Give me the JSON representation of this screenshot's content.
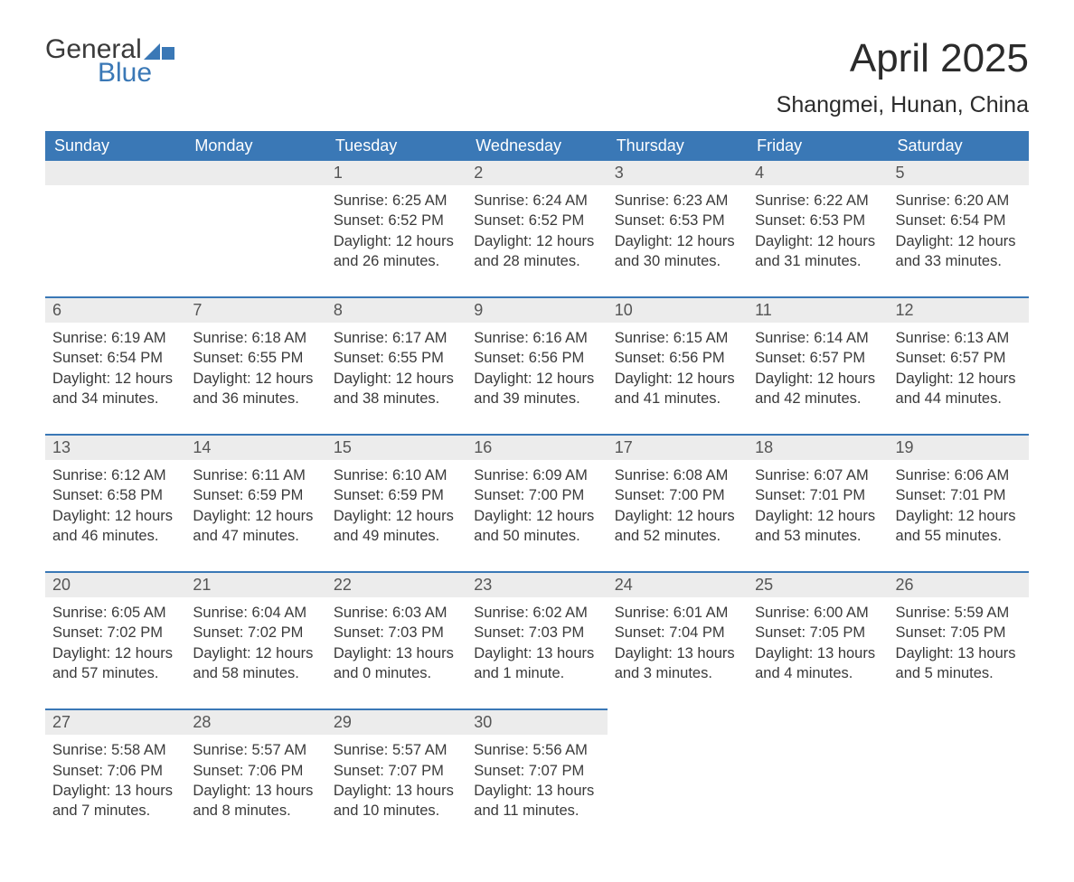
{
  "logo": {
    "word1": "General",
    "word2": "Blue"
  },
  "title": "April 2025",
  "location": "Shangmei, Hunan, China",
  "colors": {
    "header_bg": "#3a78b6",
    "header_text": "#ffffff",
    "daynum_bg": "#ececec",
    "body_text": "#3a3a3a",
    "rule": "#3a78b6",
    "page_bg": "#ffffff"
  },
  "dayHeaders": [
    "Sunday",
    "Monday",
    "Tuesday",
    "Wednesday",
    "Thursday",
    "Friday",
    "Saturday"
  ],
  "labels": {
    "sunrise": "Sunrise: ",
    "sunset": "Sunset: ",
    "daylight": "Daylight: "
  },
  "weeks": [
    [
      null,
      null,
      {
        "n": "1",
        "sunrise": "6:25 AM",
        "sunset": "6:52 PM",
        "daylight": "12 hours and 26 minutes."
      },
      {
        "n": "2",
        "sunrise": "6:24 AM",
        "sunset": "6:52 PM",
        "daylight": "12 hours and 28 minutes."
      },
      {
        "n": "3",
        "sunrise": "6:23 AM",
        "sunset": "6:53 PM",
        "daylight": "12 hours and 30 minutes."
      },
      {
        "n": "4",
        "sunrise": "6:22 AM",
        "sunset": "6:53 PM",
        "daylight": "12 hours and 31 minutes."
      },
      {
        "n": "5",
        "sunrise": "6:20 AM",
        "sunset": "6:54 PM",
        "daylight": "12 hours and 33 minutes."
      }
    ],
    [
      {
        "n": "6",
        "sunrise": "6:19 AM",
        "sunset": "6:54 PM",
        "daylight": "12 hours and 34 minutes."
      },
      {
        "n": "7",
        "sunrise": "6:18 AM",
        "sunset": "6:55 PM",
        "daylight": "12 hours and 36 minutes."
      },
      {
        "n": "8",
        "sunrise": "6:17 AM",
        "sunset": "6:55 PM",
        "daylight": "12 hours and 38 minutes."
      },
      {
        "n": "9",
        "sunrise": "6:16 AM",
        "sunset": "6:56 PM",
        "daylight": "12 hours and 39 minutes."
      },
      {
        "n": "10",
        "sunrise": "6:15 AM",
        "sunset": "6:56 PM",
        "daylight": "12 hours and 41 minutes."
      },
      {
        "n": "11",
        "sunrise": "6:14 AM",
        "sunset": "6:57 PM",
        "daylight": "12 hours and 42 minutes."
      },
      {
        "n": "12",
        "sunrise": "6:13 AM",
        "sunset": "6:57 PM",
        "daylight": "12 hours and 44 minutes."
      }
    ],
    [
      {
        "n": "13",
        "sunrise": "6:12 AM",
        "sunset": "6:58 PM",
        "daylight": "12 hours and 46 minutes."
      },
      {
        "n": "14",
        "sunrise": "6:11 AM",
        "sunset": "6:59 PM",
        "daylight": "12 hours and 47 minutes."
      },
      {
        "n": "15",
        "sunrise": "6:10 AM",
        "sunset": "6:59 PM",
        "daylight": "12 hours and 49 minutes."
      },
      {
        "n": "16",
        "sunrise": "6:09 AM",
        "sunset": "7:00 PM",
        "daylight": "12 hours and 50 minutes."
      },
      {
        "n": "17",
        "sunrise": "6:08 AM",
        "sunset": "7:00 PM",
        "daylight": "12 hours and 52 minutes."
      },
      {
        "n": "18",
        "sunrise": "6:07 AM",
        "sunset": "7:01 PM",
        "daylight": "12 hours and 53 minutes."
      },
      {
        "n": "19",
        "sunrise": "6:06 AM",
        "sunset": "7:01 PM",
        "daylight": "12 hours and 55 minutes."
      }
    ],
    [
      {
        "n": "20",
        "sunrise": "6:05 AM",
        "sunset": "7:02 PM",
        "daylight": "12 hours and 57 minutes."
      },
      {
        "n": "21",
        "sunrise": "6:04 AM",
        "sunset": "7:02 PM",
        "daylight": "12 hours and 58 minutes."
      },
      {
        "n": "22",
        "sunrise": "6:03 AM",
        "sunset": "7:03 PM",
        "daylight": "13 hours and 0 minutes."
      },
      {
        "n": "23",
        "sunrise": "6:02 AM",
        "sunset": "7:03 PM",
        "daylight": "13 hours and 1 minute."
      },
      {
        "n": "24",
        "sunrise": "6:01 AM",
        "sunset": "7:04 PM",
        "daylight": "13 hours and 3 minutes."
      },
      {
        "n": "25",
        "sunrise": "6:00 AM",
        "sunset": "7:05 PM",
        "daylight": "13 hours and 4 minutes."
      },
      {
        "n": "26",
        "sunrise": "5:59 AM",
        "sunset": "7:05 PM",
        "daylight": "13 hours and 5 minutes."
      }
    ],
    [
      {
        "n": "27",
        "sunrise": "5:58 AM",
        "sunset": "7:06 PM",
        "daylight": "13 hours and 7 minutes."
      },
      {
        "n": "28",
        "sunrise": "5:57 AM",
        "sunset": "7:06 PM",
        "daylight": "13 hours and 8 minutes."
      },
      {
        "n": "29",
        "sunrise": "5:57 AM",
        "sunset": "7:07 PM",
        "daylight": "13 hours and 10 minutes."
      },
      {
        "n": "30",
        "sunrise": "5:56 AM",
        "sunset": "7:07 PM",
        "daylight": "13 hours and 11 minutes."
      },
      null,
      null,
      null
    ]
  ]
}
